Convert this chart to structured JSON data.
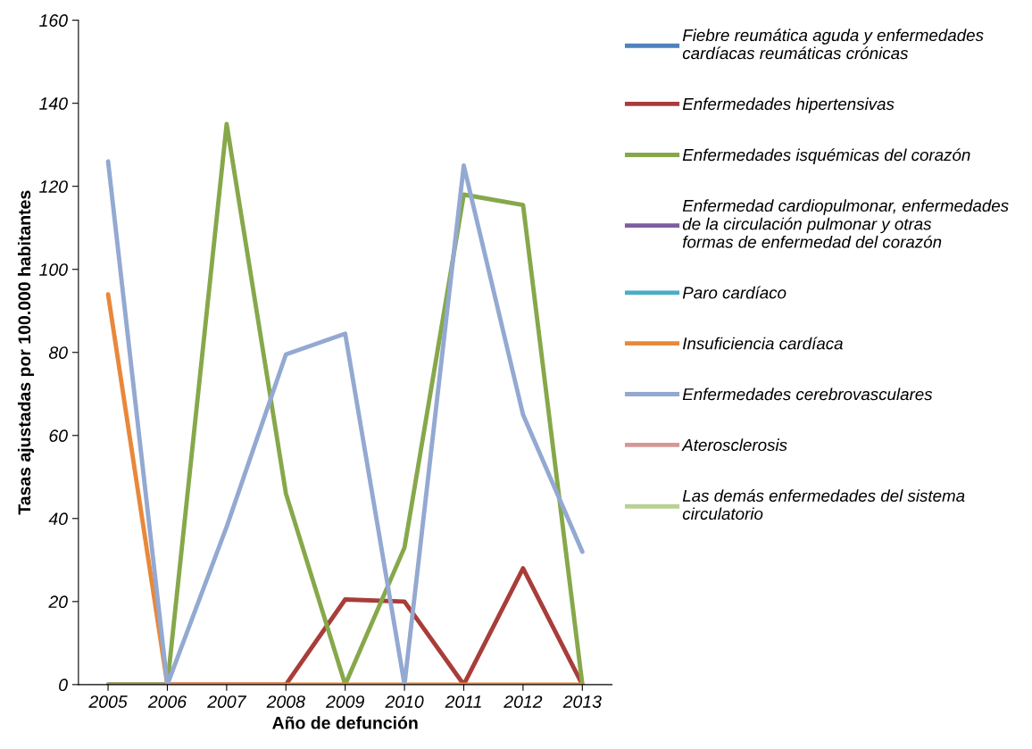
{
  "chart_data": {
    "type": "line",
    "xlabel": "Año de defunción",
    "ylabel": "Tasas ajustadas por 100.000 habitantes",
    "categories": [
      "2005",
      "2006",
      "2007",
      "2008",
      "2009",
      "2010",
      "2011",
      "2012",
      "2013"
    ],
    "ylim": [
      0,
      160
    ],
    "yticks": [
      0,
      20,
      40,
      60,
      80,
      100,
      120,
      140,
      160
    ],
    "grid": false,
    "legend": "right",
    "marker": "none",
    "line_style": "solid",
    "series": [
      {
        "name": "Fiebre reumática aguda y enfermedades cardíacas reumáticas crónicas",
        "color": "#4f81bd",
        "values": [
          null,
          null,
          null,
          null,
          null,
          null,
          null,
          null,
          null
        ]
      },
      {
        "name": "Enfermedades hipertensivas",
        "color": "#a83d3a",
        "values": [
          0,
          0,
          0,
          0,
          20.5,
          20,
          0,
          28,
          0
        ]
      },
      {
        "name": "Enfermedades isquémicas del corazón",
        "color": "#86a84a",
        "values": [
          0,
          0,
          135,
          46,
          0,
          33,
          118,
          115.5,
          0
        ]
      },
      {
        "name": "Enfermedad cardiopulmonar, enfermedades de la circulación pulmonar y otras formas de enfermedad del corazón",
        "color": "#7d5fa0",
        "values": [
          null,
          null,
          null,
          null,
          null,
          null,
          null,
          null,
          null
        ]
      },
      {
        "name": "Paro cardíaco",
        "color": "#4bacc6",
        "values": [
          null,
          null,
          null,
          null,
          null,
          null,
          null,
          null,
          null
        ]
      },
      {
        "name": "Insuficiencia cardíaca",
        "color": "#e8883a",
        "values": [
          94,
          0,
          0,
          0,
          0,
          0,
          0,
          0,
          0
        ]
      },
      {
        "name": "Enfermedades cerebrovasculares",
        "color": "#93a9d1",
        "values": [
          126,
          0,
          38,
          79.5,
          84.5,
          0,
          125,
          65,
          32
        ]
      },
      {
        "name": "Aterosclerosis",
        "color": "#d69896",
        "values": [
          null,
          null,
          null,
          null,
          null,
          null,
          null,
          null,
          null
        ]
      },
      {
        "name": "Las demás enfermedades del sistema circulatorio",
        "color": "#b9d193",
        "values": [
          null,
          null,
          null,
          null,
          null,
          null,
          null,
          null,
          null
        ]
      }
    ]
  }
}
